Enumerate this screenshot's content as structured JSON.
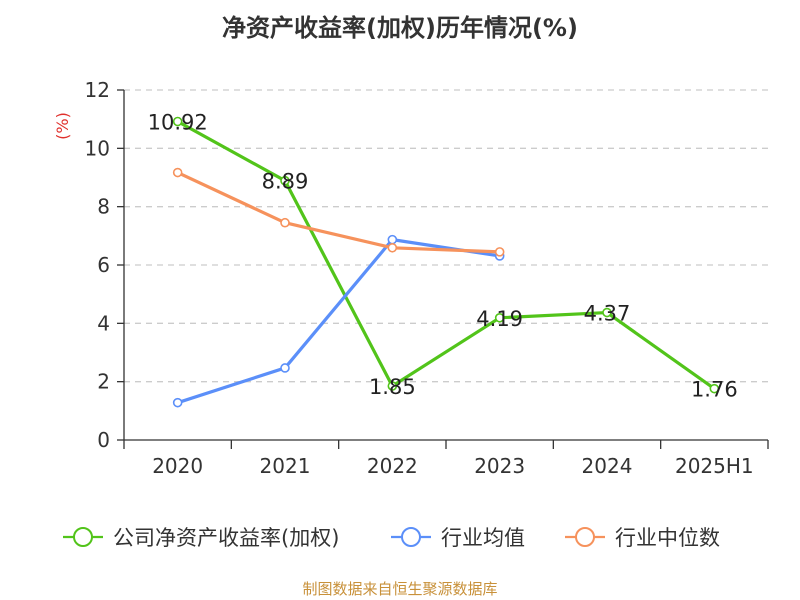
{
  "chart_data": {
    "type": "line",
    "title": "净资产收益率(加权)历年情况(%)",
    "ylabel": "(%)",
    "categories": [
      "2020",
      "2021",
      "2022",
      "2023",
      "2024",
      "2025H1"
    ],
    "ylim": [
      0,
      12
    ],
    "yticks": [
      0,
      2,
      4,
      6,
      8,
      10,
      12
    ],
    "grid": true,
    "legend_position": "bottom",
    "series": [
      {
        "name": "公司净资产收益率(加权)",
        "color": "#52c41a",
        "values": [
          10.92,
          8.89,
          1.85,
          4.19,
          4.37,
          1.76
        ],
        "labels": [
          "10.92",
          "8.89",
          "1.85",
          "4.19",
          "4.37",
          "1.76"
        ]
      },
      {
        "name": "行业均值",
        "color": "#5b8ff9",
        "values": [
          1.28,
          2.47,
          6.87,
          6.31,
          null,
          null
        ]
      },
      {
        "name": "行业中位数",
        "color": "#f6925c",
        "values": [
          9.17,
          7.45,
          6.59,
          6.45,
          null,
          null
        ]
      }
    ]
  },
  "footer": {
    "source": "制图数据来自恒生聚源数据库",
    "source_color": "#c8913a"
  },
  "colors": {
    "axis": "#333333",
    "grid": "#cccccc",
    "ylabel": "#e0302c"
  }
}
